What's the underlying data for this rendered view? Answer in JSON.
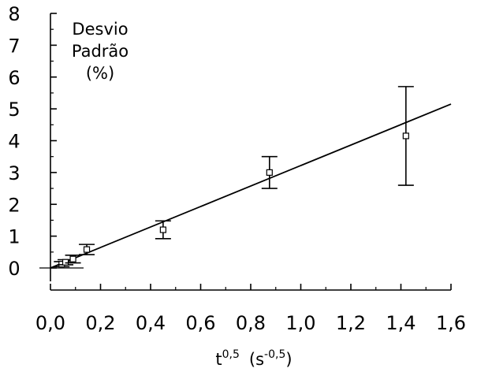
{
  "chart_data": {
    "type": "scatter",
    "ylabel_lines": [
      "Desvio",
      "Padrão",
      "(%)"
    ],
    "xlabel": {
      "base": "t",
      "base_exp": "0,5",
      "unit_open": "(s",
      "unit_exp": "-0,5",
      "unit_close": ")"
    },
    "xlim": [
      0,
      1.6
    ],
    "ylim": [
      0,
      8
    ],
    "xticks": [
      "0,0",
      "0,2",
      "0,4",
      "0,6",
      "0,8",
      "1,0",
      "1,2",
      "1,4",
      "1,6"
    ],
    "yticks": [
      "0",
      "1",
      "2",
      "3",
      "4",
      "5",
      "6",
      "7",
      "8"
    ],
    "grid": false,
    "series": [
      {
        "points": [
          {
            "x": 0.045,
            "y": 0.12,
            "err": 0.08
          },
          {
            "x": 0.06,
            "y": 0.18,
            "err": 0.08
          },
          {
            "x": 0.09,
            "y": 0.28,
            "err": 0.12
          },
          {
            "x": 0.145,
            "y": 0.58,
            "err": 0.16
          },
          {
            "x": 0.45,
            "y": 1.2,
            "err": 0.28
          },
          {
            "x": 0.875,
            "y": 3.0,
            "err": 0.5
          },
          {
            "x": 1.42,
            "y": 4.15,
            "err": 1.55
          }
        ]
      }
    ],
    "fit_line": {
      "x": [
        0.0,
        1.6
      ],
      "y": [
        0.0,
        5.15
      ]
    }
  }
}
